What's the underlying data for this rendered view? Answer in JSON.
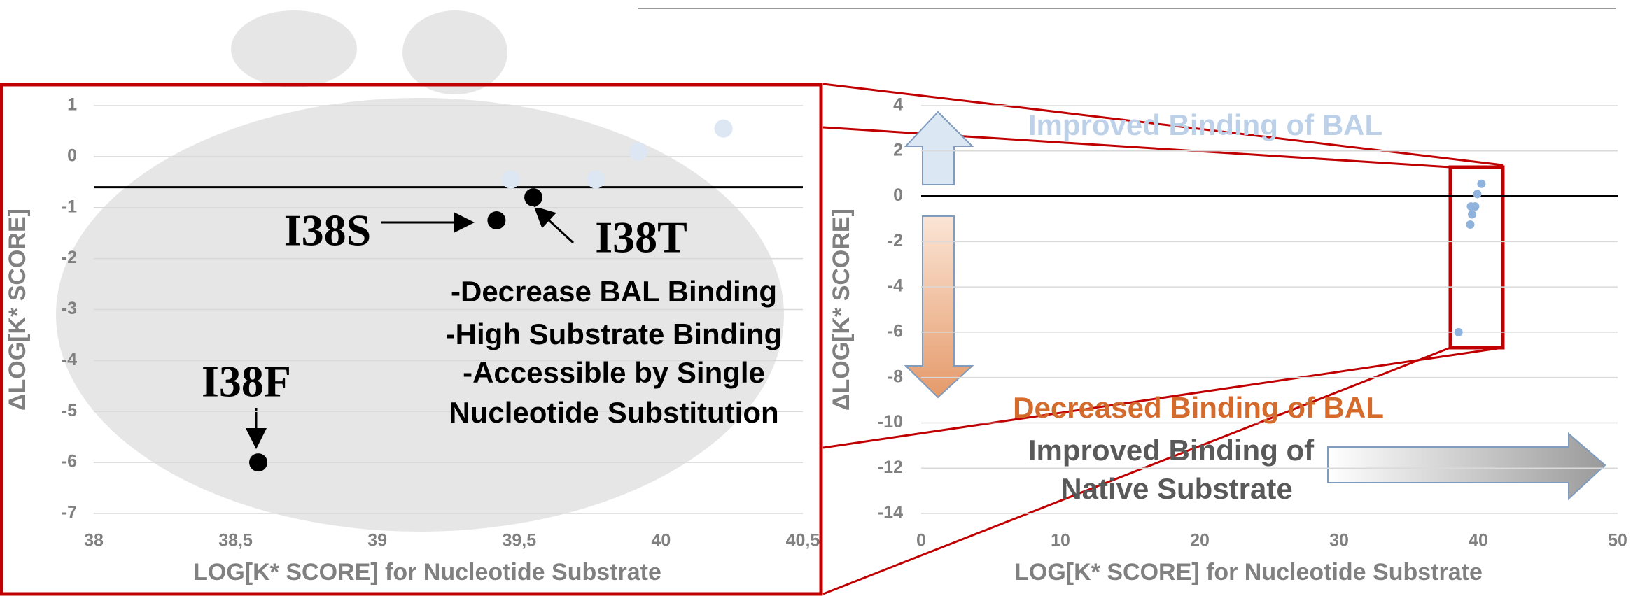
{
  "chart_data": [
    {
      "type": "scatter",
      "x_label": "LOG[K* SCORE] for Nucleotide Substrate",
      "y_label": "ΔLOG[K* SCORE]",
      "xlim": [
        38,
        40.5
      ],
      "xticks": [
        38,
        {
          "value": 38.5,
          "label": "38,5"
        },
        39,
        {
          "value": 39.5,
          "label": "39,5"
        },
        40,
        {
          "value": 40.5,
          "label": "40,5"
        }
      ],
      "ylim": [
        -7,
        1
      ],
      "yticks": [
        -7,
        -6,
        -5,
        -4,
        -3,
        -2,
        -1,
        0,
        1
      ],
      "grid": true,
      "hline": -0.6,
      "series": [
        {
          "color": "#000000",
          "x": [
            38.58,
            39.42,
            39.55
          ],
          "values": [
            -6.0,
            -1.25,
            -0.8
          ]
        },
        {
          "color": "#dde7f3",
          "x": [
            39.47,
            39.77,
            39.92,
            40.22
          ],
          "values": [
            -0.45,
            -0.45,
            0.1,
            0.55
          ]
        }
      ],
      "annotations": [
        "I38S",
        "I38T",
        "I38F",
        "-Decrease BAL Binding",
        "-High Substrate Binding",
        "-Accessible by Single",
        "Nucleotide Substitution"
      ]
    },
    {
      "type": "scatter",
      "x_label": "LOG[K* SCORE] for Nucleotide Substrate",
      "y_label": "ΔLOG[K* SCORE]",
      "xlim": [
        0,
        50
      ],
      "xticks": [
        0,
        10,
        20,
        30,
        40,
        50
      ],
      "ylim": [
        -14,
        4
      ],
      "yticks": [
        -14,
        -12,
        -10,
        -8,
        -6,
        -4,
        -2,
        0,
        2,
        4
      ],
      "grid": true,
      "hline": 0,
      "series": [
        {
          "color": "#8fb3dc",
          "x": [
            38.58,
            39.42,
            39.55,
            39.47,
            39.77,
            39.92,
            40.22
          ],
          "values": [
            -6.0,
            -1.25,
            -0.8,
            -0.45,
            -0.45,
            0.1,
            0.55
          ]
        }
      ],
      "annotations": [
        "Improved Binding of BAL",
        "Decreased Binding of BAL",
        "Improved Binding of",
        "Native Substrate"
      ]
    }
  ]
}
